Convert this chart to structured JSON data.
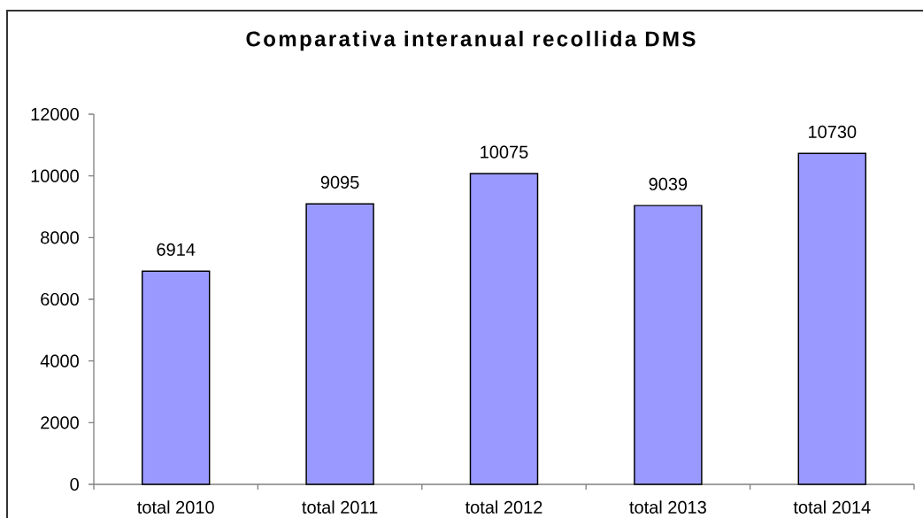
{
  "chart_data": {
    "type": "bar",
    "title": "Comparativa interanual recollida DMS",
    "categories": [
      "total 2010",
      "total 2011",
      "total 2012",
      "total 2013",
      "total 2014"
    ],
    "values": [
      6914,
      9095,
      10075,
      9039,
      10730
    ],
    "color": "#9999ff",
    "ylim": [
      0,
      12000
    ],
    "yticks": [
      0,
      2000,
      4000,
      6000,
      8000,
      10000,
      12000
    ],
    "data_labels": true
  }
}
